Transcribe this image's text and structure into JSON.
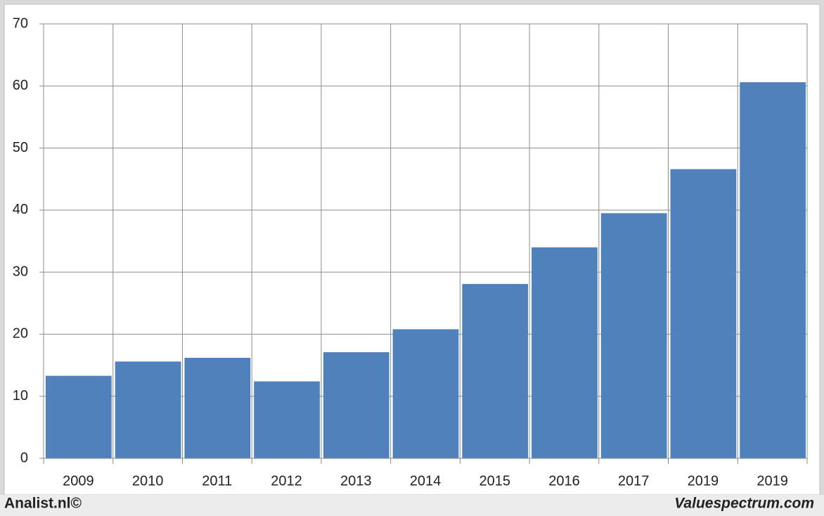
{
  "chart_data": {
    "type": "bar",
    "categories": [
      "2009",
      "2010",
      "2011",
      "2012",
      "2013",
      "2014",
      "2015",
      "2016",
      "2017",
      "2019",
      "2019"
    ],
    "values": [
      13.3,
      15.6,
      16.2,
      12.4,
      17.1,
      20.8,
      28.1,
      34.0,
      39.5,
      46.6,
      60.6
    ],
    "color": "#4f81bd",
    "ylim": [
      0,
      70
    ],
    "yticks": [
      0,
      10,
      20,
      30,
      40,
      50,
      60,
      70
    ],
    "grid": true,
    "footer_left": "Analist.nl©",
    "footer_right": "Valuespectrum.com"
  }
}
